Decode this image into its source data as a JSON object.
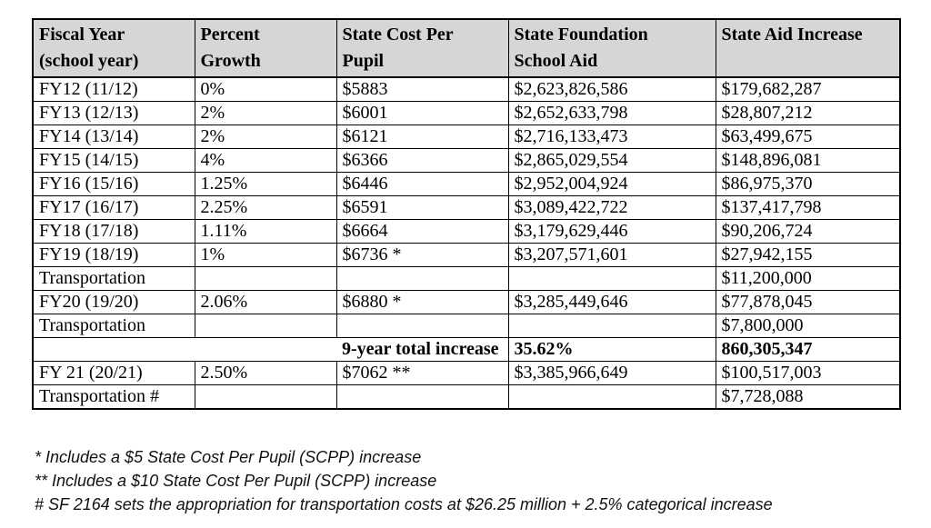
{
  "table": {
    "headers": [
      "Fiscal Year\n(school year)",
      "Percent\nGrowth",
      "State Cost Per\nPupil",
      "State Foundation\nSchool Aid",
      "State Aid Increase"
    ],
    "rows": [
      {
        "type": "data",
        "cells": [
          "FY12 (11/12)",
          "0%",
          "$5883",
          "$2,623,826,586",
          "$179,682,287"
        ]
      },
      {
        "type": "data",
        "cells": [
          "FY13 (12/13)",
          "2%",
          "$6001",
          "$2,652,633,798",
          "$28,807,212"
        ]
      },
      {
        "type": "data",
        "cells": [
          "FY14 (13/14)",
          "2%",
          "$6121",
          "$2,716,133,473",
          "$63,499,675"
        ]
      },
      {
        "type": "data",
        "cells": [
          "FY15 (14/15)",
          "4%",
          "$6366",
          "$2,865,029,554",
          "$148,896,081"
        ]
      },
      {
        "type": "data",
        "cells": [
          "FY16 (15/16)",
          "1.25%",
          "$6446",
          "$2,952,004,924",
          "$86,975,370"
        ]
      },
      {
        "type": "data",
        "cells": [
          "FY17 (16/17)",
          "2.25%",
          "$6591",
          "$3,089,422,722",
          "$137,417,798"
        ]
      },
      {
        "type": "data",
        "cells": [
          "FY18 (17/18)",
          "1.11%",
          "$6664",
          "$3,179,629,446",
          "$90,206,724"
        ]
      },
      {
        "type": "data",
        "cells": [
          "FY19 (18/19)",
          "1%",
          "$6736 *",
          "$3,207,571,601",
          "$27,942,155"
        ]
      },
      {
        "type": "data",
        "cells": [
          "Transportation",
          "",
          "",
          "",
          "$11,200,000"
        ]
      },
      {
        "type": "data",
        "cells": [
          "FY20 (19/20)",
          "2.06%",
          "$6880 *",
          "$3,285,449,646",
          "$77,878,045"
        ]
      },
      {
        "type": "data",
        "cells": [
          "Transportation",
          "",
          "",
          "",
          "$7,800,000"
        ]
      },
      {
        "type": "total",
        "label": "9-year total increase",
        "cells": [
          "35.62%",
          "860,305,347"
        ]
      },
      {
        "type": "data",
        "cells": [
          "FY 21 (20/21)",
          "2.50%",
          "$7062 **",
          "$3,385,966,649",
          "$100,517,003"
        ]
      },
      {
        "type": "data",
        "cells": [
          "Transportation #",
          "",
          "",
          "",
          "$7,728,088"
        ]
      }
    ]
  },
  "footnotes": [
    "* Includes a $5 State Cost Per Pupil (SCPP) increase",
    "** Includes a $10 State Cost Per Pupil (SCPP) increase",
    "# SF 2164 sets the appropriation for transportation costs at $26.25 million + 2.5% categorical increase"
  ],
  "colors": {
    "header_bg": "#d6d6d6",
    "border": "#000000",
    "text": "#000000"
  }
}
